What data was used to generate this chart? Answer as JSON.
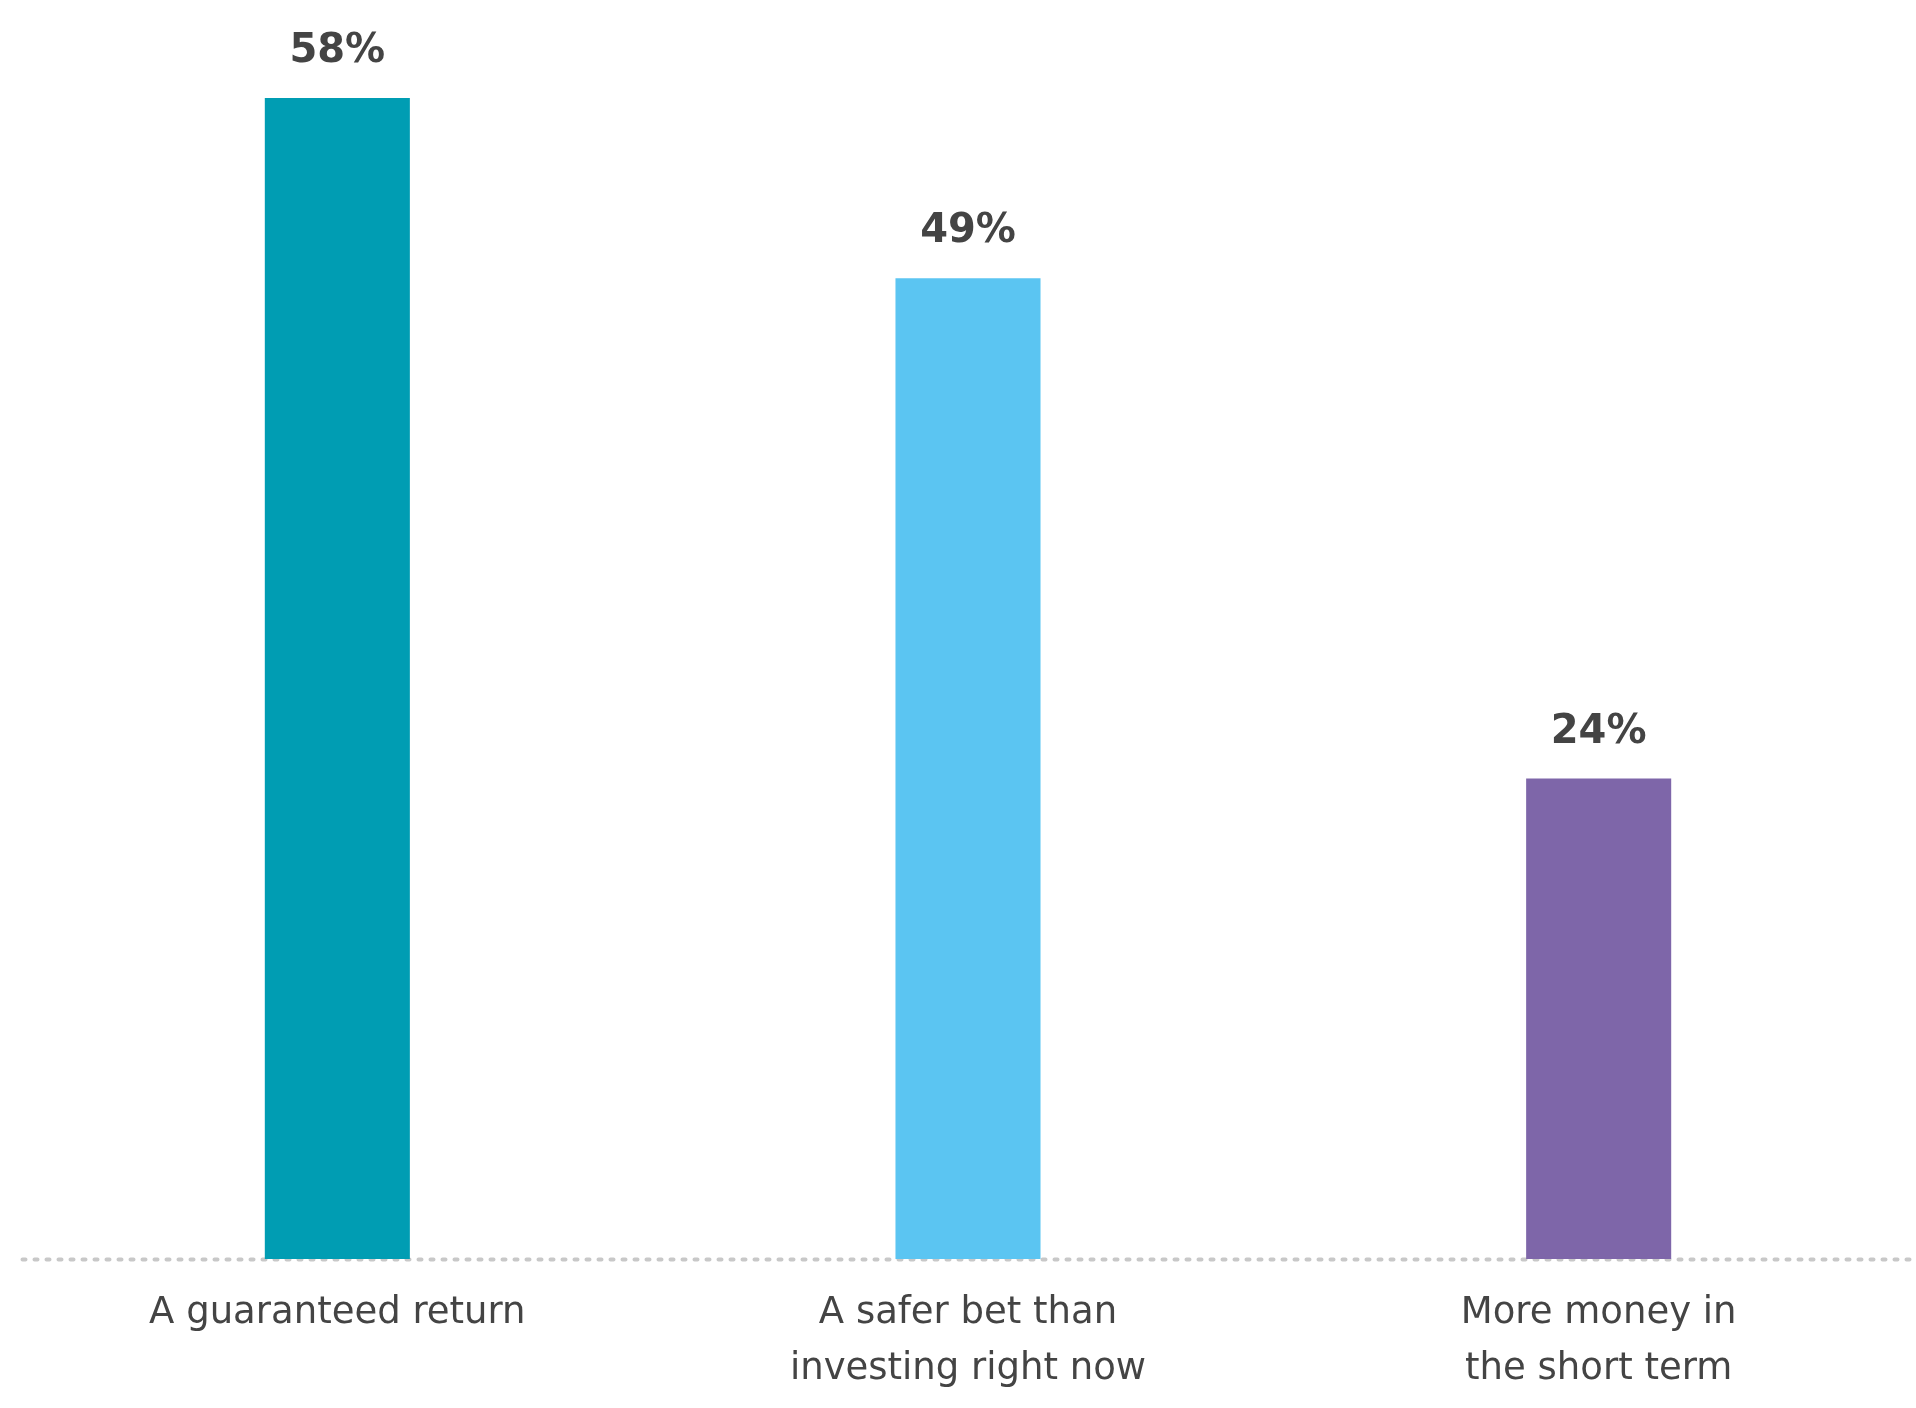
{
  "chart_data": {
    "type": "bar",
    "categories": [
      "A guaranteed return",
      "A safer bet than investing right now",
      "More money in the short term"
    ],
    "values": [
      58,
      49,
      24
    ],
    "colors": [
      "#009db3",
      "#5bc5f2",
      "#7e66a9"
    ],
    "value_labels": [
      "58%",
      "49%",
      "24%"
    ]
  }
}
